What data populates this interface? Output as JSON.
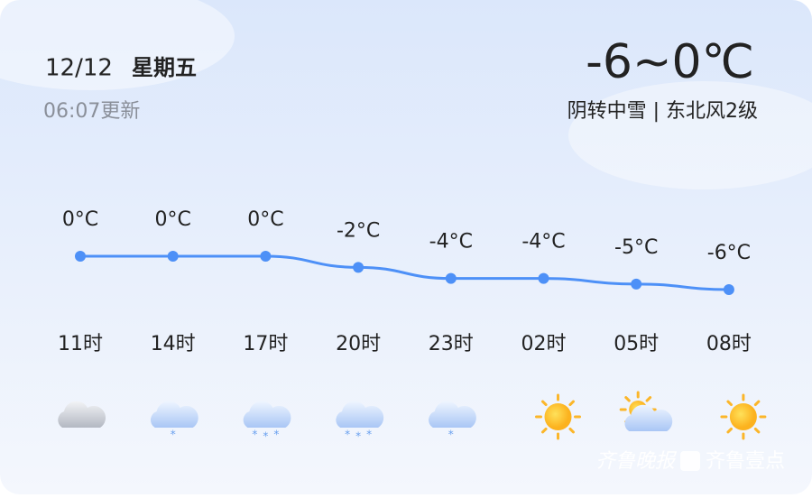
{
  "header": {
    "date": "12/12",
    "weekday": "星期五",
    "updated": "06:07更新",
    "temp_range": "-6~0℃",
    "description": "阴转中雪 | 东北风2级"
  },
  "chart_data": {
    "type": "line",
    "categories": [
      "11时",
      "14时",
      "17时",
      "20时",
      "23时",
      "02时",
      "05时",
      "08时"
    ],
    "values": [
      0,
      0,
      0,
      -2,
      -4,
      -4,
      -5,
      -6
    ],
    "value_labels": [
      "0°C",
      "0°C",
      "0°C",
      "-2°C",
      "-4°C",
      "-4°C",
      "-5°C",
      "-6°C"
    ],
    "color": "#4d90f7"
  },
  "watermark": {
    "paper": "齐鲁晚报",
    "app": "齐鲁壹点"
  }
}
